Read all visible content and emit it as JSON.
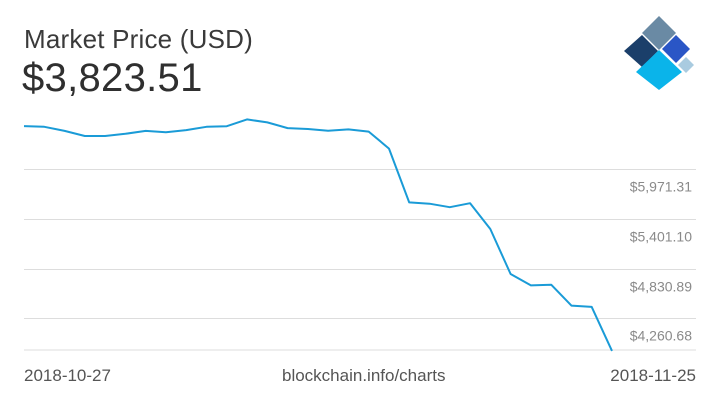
{
  "header": {
    "title": "Market Price (USD)",
    "current_price": "$3,823.51"
  },
  "footer": {
    "start_date": "2018-10-27",
    "source": "blockchain.info/charts",
    "end_date": "2018-11-25"
  },
  "colors": {
    "line": "#1a9bd7",
    "grid": "#dddddd",
    "axis_label": "#8a8a8a",
    "logo_dark": "#1b3f6a",
    "logo_gray": "#6a8aa4",
    "logo_blue": "#2a56c6",
    "logo_light_blue": "#a9cbe0",
    "logo_cyan": "#0ab4ea"
  },
  "logo": {
    "icon": "blockchain-logo-icon"
  },
  "chart_data": {
    "type": "line",
    "title": "Market Price (USD)",
    "xlabel": "",
    "ylabel": "",
    "grid": true,
    "x_range": [
      "2018-10-27",
      "2018-11-25"
    ],
    "ylim": [
      3900,
      6670
    ],
    "y_ticks": [
      4260.68,
      4830.89,
      5401.1,
      5971.31
    ],
    "y_tick_labels": [
      "$4,260.68",
      "$4,830.89",
      "$5,401.10",
      "$5,971.31"
    ],
    "series": [
      {
        "x": [
          "2018-10-27",
          "2018-10-28",
          "2018-10-29",
          "2018-10-30",
          "2018-10-31",
          "2018-11-01",
          "2018-11-02",
          "2018-11-03",
          "2018-11-04",
          "2018-11-05",
          "2018-11-06",
          "2018-11-07",
          "2018-11-08",
          "2018-11-09",
          "2018-11-10",
          "2018-11-11",
          "2018-11-12",
          "2018-11-13",
          "2018-11-14",
          "2018-11-15",
          "2018-11-16",
          "2018-11-17",
          "2018-11-18",
          "2018-11-19",
          "2018-11-20",
          "2018-11-21",
          "2018-11-22",
          "2018-11-23",
          "2018-11-24",
          "2018-11-25"
        ],
        "values": [
          6463,
          6455,
          6408,
          6350,
          6350,
          6375,
          6408,
          6392,
          6417,
          6455,
          6462,
          6540,
          6505,
          6440,
          6430,
          6410,
          6425,
          6400,
          6205,
          5590,
          5575,
          5535,
          5580,
          5285,
          4770,
          4640,
          4648,
          4408,
          4393,
          3890
        ]
      }
    ]
  }
}
